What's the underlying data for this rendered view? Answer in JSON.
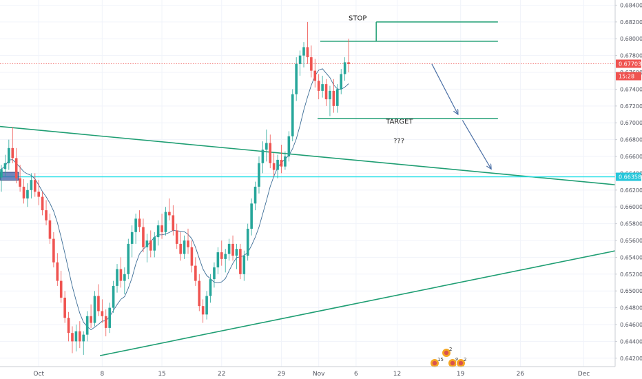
{
  "chart_data": {
    "type": "candlestick",
    "title": "",
    "xlabel": "",
    "ylabel": "",
    "ylim": [
      0.641,
      0.6842
    ],
    "y_ticks": [
      "0.68400",
      "0.68200",
      "0.68000",
      "0.67800",
      "0.67600",
      "0.67400",
      "0.67200",
      "0.67000",
      "0.66800",
      "0.66600",
      "0.66400",
      "0.66200",
      "0.66000",
      "0.65800",
      "0.65600",
      "0.65400",
      "0.65200",
      "0.65000",
      "0.64800",
      "0.64600",
      "0.64400",
      "0.64200"
    ],
    "x_ticks": [
      "Oct",
      "8",
      "15",
      "22",
      "29",
      "Nov",
      "6",
      "12",
      "19",
      "26",
      "Dec"
    ],
    "price_badges": [
      {
        "value": 0.67703,
        "label": "0.67703",
        "color": "#ef5350"
      },
      {
        "value": 0.67555,
        "label": "15:28",
        "color": "#ef5350"
      },
      {
        "value": 0.66358,
        "label": "0.66358",
        "color": "#26c6da"
      }
    ],
    "lines": {
      "stop_level": 0.682,
      "upper_level": 0.6797,
      "target_level": 0.6705,
      "cyan_level": 0.66358,
      "current_price": 0.67703
    },
    "annotations": [
      {
        "text": "STOP",
        "x": 93,
        "y": 0.6822
      },
      {
        "text": "TARGET",
        "x": 103,
        "y": 0.6699
      },
      {
        "text": "???",
        "x": 105,
        "y": 0.6676
      }
    ],
    "event_markers": [
      "15",
      "9",
      "2",
      "2"
    ],
    "colors": {
      "up": "#26a69a",
      "down": "#ef5350",
      "trend": "#1f9e73",
      "ma": "#3c6d96",
      "cyan": "#26e0e8",
      "arrow": "#4a6fa5"
    },
    "candles": [
      [
        0.6635,
        0.665,
        0.6618,
        0.6645
      ],
      [
        0.6645,
        0.6662,
        0.6636,
        0.6652
      ],
      [
        0.6652,
        0.668,
        0.6644,
        0.667
      ],
      [
        0.667,
        0.6695,
        0.6652,
        0.6658
      ],
      [
        0.6658,
        0.667,
        0.6628,
        0.6634
      ],
      [
        0.6634,
        0.665,
        0.6618,
        0.6624
      ],
      [
        0.6624,
        0.6633,
        0.6604,
        0.661
      ],
      [
        0.661,
        0.6628,
        0.66,
        0.662
      ],
      [
        0.662,
        0.664,
        0.661,
        0.6632
      ],
      [
        0.6632,
        0.664,
        0.6612,
        0.6618
      ],
      [
        0.6618,
        0.6632,
        0.6602,
        0.6612
      ],
      [
        0.6612,
        0.6618,
        0.659,
        0.6596
      ],
      [
        0.6596,
        0.6608,
        0.6578,
        0.6584
      ],
      [
        0.6584,
        0.6592,
        0.6556,
        0.6562
      ],
      [
        0.6562,
        0.657,
        0.6528,
        0.6534
      ],
      [
        0.6534,
        0.6545,
        0.6506,
        0.6512
      ],
      [
        0.6512,
        0.6524,
        0.6486,
        0.6492
      ],
      [
        0.6492,
        0.65,
        0.6462,
        0.6468
      ],
      [
        0.6468,
        0.6475,
        0.644,
        0.645
      ],
      [
        0.645,
        0.6458,
        0.6426,
        0.644
      ],
      [
        0.644,
        0.646,
        0.6428,
        0.6452
      ],
      [
        0.6452,
        0.6464,
        0.6432,
        0.644
      ],
      [
        0.644,
        0.6452,
        0.6424,
        0.6448
      ],
      [
        0.6448,
        0.6476,
        0.644,
        0.647
      ],
      [
        0.647,
        0.6484,
        0.6456,
        0.6462
      ],
      [
        0.6462,
        0.65,
        0.6458,
        0.6494
      ],
      [
        0.6494,
        0.6508,
        0.647,
        0.6476
      ],
      [
        0.6476,
        0.649,
        0.6462,
        0.647
      ],
      [
        0.647,
        0.6478,
        0.6446,
        0.6456
      ],
      [
        0.6456,
        0.6486,
        0.645,
        0.648
      ],
      [
        0.648,
        0.6512,
        0.6474,
        0.6506
      ],
      [
        0.6506,
        0.6532,
        0.6498,
        0.6526
      ],
      [
        0.6526,
        0.654,
        0.6504,
        0.6512
      ],
      [
        0.6512,
        0.6528,
        0.6496,
        0.652
      ],
      [
        0.652,
        0.6562,
        0.6514,
        0.6556
      ],
      [
        0.6556,
        0.6578,
        0.654,
        0.657
      ],
      [
        0.657,
        0.6592,
        0.6556,
        0.6586
      ],
      [
        0.6586,
        0.6596,
        0.657,
        0.6576
      ],
      [
        0.6576,
        0.6586,
        0.6546,
        0.6552
      ],
      [
        0.6552,
        0.6568,
        0.6534,
        0.656
      ],
      [
        0.656,
        0.6572,
        0.654,
        0.6548
      ],
      [
        0.6548,
        0.657,
        0.654,
        0.6564
      ],
      [
        0.6564,
        0.6584,
        0.6554,
        0.6578
      ],
      [
        0.6578,
        0.6592,
        0.6562,
        0.657
      ],
      [
        0.657,
        0.66,
        0.6566,
        0.6594
      ],
      [
        0.6594,
        0.661,
        0.6584,
        0.659
      ],
      [
        0.659,
        0.6602,
        0.6566,
        0.6572
      ],
      [
        0.6572,
        0.658,
        0.655,
        0.6556
      ],
      [
        0.6556,
        0.657,
        0.6536,
        0.6544
      ],
      [
        0.6544,
        0.6566,
        0.6538,
        0.656
      ],
      [
        0.656,
        0.6574,
        0.6544,
        0.6552
      ],
      [
        0.6552,
        0.656,
        0.6522,
        0.653
      ],
      [
        0.653,
        0.654,
        0.6506,
        0.6512
      ],
      [
        0.6512,
        0.652,
        0.6476,
        0.6482
      ],
      [
        0.6482,
        0.649,
        0.6462,
        0.6472
      ],
      [
        0.6472,
        0.65,
        0.6466,
        0.6494
      ],
      [
        0.6494,
        0.652,
        0.6486,
        0.6514
      ],
      [
        0.6514,
        0.6534,
        0.6504,
        0.6528
      ],
      [
        0.6528,
        0.6552,
        0.652,
        0.6546
      ],
      [
        0.6546,
        0.656,
        0.653,
        0.6538
      ],
      [
        0.6538,
        0.655,
        0.6522,
        0.6544
      ],
      [
        0.6544,
        0.6562,
        0.6536,
        0.6556
      ],
      [
        0.6556,
        0.6566,
        0.6536,
        0.6542
      ],
      [
        0.6542,
        0.6556,
        0.6526,
        0.655
      ],
      [
        0.655,
        0.6556,
        0.6514,
        0.652
      ],
      [
        0.652,
        0.6548,
        0.6512,
        0.6542
      ],
      [
        0.6542,
        0.658,
        0.6536,
        0.6574
      ],
      [
        0.6574,
        0.661,
        0.6566,
        0.6604
      ],
      [
        0.6604,
        0.663,
        0.6596,
        0.6624
      ],
      [
        0.6624,
        0.666,
        0.6616,
        0.6652
      ],
      [
        0.6652,
        0.6678,
        0.664,
        0.6668
      ],
      [
        0.6668,
        0.6692,
        0.6654,
        0.6676
      ],
      [
        0.6676,
        0.6686,
        0.6646,
        0.6652
      ],
      [
        0.6652,
        0.6664,
        0.6636,
        0.6644
      ],
      [
        0.6644,
        0.6662,
        0.6634,
        0.6656
      ],
      [
        0.6656,
        0.6674,
        0.664,
        0.6648
      ],
      [
        0.6648,
        0.6666,
        0.6644,
        0.666
      ],
      [
        0.666,
        0.669,
        0.6654,
        0.6684
      ],
      [
        0.6684,
        0.674,
        0.6678,
        0.6734
      ],
      [
        0.6734,
        0.6778,
        0.6726,
        0.677
      ],
      [
        0.677,
        0.6786,
        0.6756,
        0.678
      ],
      [
        0.678,
        0.6796,
        0.6766,
        0.679
      ],
      [
        0.679,
        0.682,
        0.677,
        0.6778
      ],
      [
        0.6778,
        0.6792,
        0.6754,
        0.6762
      ],
      [
        0.6762,
        0.6776,
        0.6742,
        0.675
      ],
      [
        0.675,
        0.6758,
        0.6728,
        0.6738
      ],
      [
        0.6738,
        0.6756,
        0.673,
        0.6746
      ],
      [
        0.6746,
        0.6752,
        0.672,
        0.6728
      ],
      [
        0.6728,
        0.6744,
        0.6708,
        0.6738
      ],
      [
        0.6738,
        0.6752,
        0.6712,
        0.672
      ],
      [
        0.672,
        0.6746,
        0.6712,
        0.674
      ],
      [
        0.674,
        0.6764,
        0.6734,
        0.6758
      ],
      [
        0.6758,
        0.6778,
        0.675,
        0.6772
      ],
      [
        0.6772,
        0.68,
        0.676,
        0.677
      ]
    ]
  }
}
